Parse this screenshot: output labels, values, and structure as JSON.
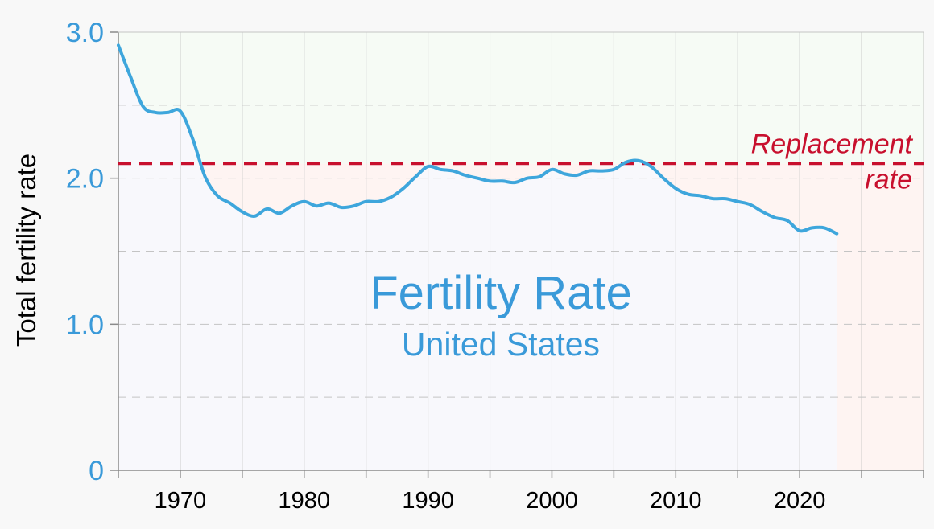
{
  "chart_data": {
    "type": "line",
    "title": "Fertility Rate",
    "subtitle": "United States",
    "xlabel": "",
    "ylabel": "Total fertility rate",
    "xlim": [
      1965,
      2030
    ],
    "ylim": [
      0,
      3.0
    ],
    "x_ticks": [
      1970,
      1980,
      1990,
      2000,
      2010,
      2020
    ],
    "x_tick_labels": [
      "1970",
      "1980",
      "1990",
      "2000",
      "2010",
      "2020"
    ],
    "y_ticks": [
      0,
      1.0,
      2.0,
      3.0
    ],
    "y_tick_labels": [
      "0",
      "1.0",
      "2.0",
      "3.0"
    ],
    "minor_y_gridlines": [
      0.5,
      1.5,
      2.5
    ],
    "grid": true,
    "reference_line": {
      "value": 2.1,
      "label_line1": "Replacement",
      "label_line2": "rate",
      "color": "#c8102e"
    },
    "series": [
      {
        "name": "United States",
        "color": "#3ea6dc",
        "x": [
          1965,
          1966,
          1967,
          1968,
          1969,
          1970,
          1971,
          1972,
          1973,
          1974,
          1975,
          1976,
          1977,
          1978,
          1979,
          1980,
          1981,
          1982,
          1983,
          1984,
          1985,
          1986,
          1987,
          1988,
          1989,
          1990,
          1991,
          1992,
          1993,
          1994,
          1995,
          1996,
          1997,
          1998,
          1999,
          2000,
          2001,
          2002,
          2003,
          2004,
          2005,
          2006,
          2007,
          2008,
          2009,
          2010,
          2011,
          2012,
          2013,
          2014,
          2015,
          2016,
          2017,
          2018,
          2019,
          2020,
          2021,
          2022,
          2023
        ],
        "values": [
          2.91,
          2.69,
          2.49,
          2.45,
          2.45,
          2.46,
          2.27,
          2.01,
          1.88,
          1.83,
          1.77,
          1.74,
          1.79,
          1.76,
          1.81,
          1.84,
          1.81,
          1.83,
          1.8,
          1.81,
          1.84,
          1.84,
          1.87,
          1.93,
          2.01,
          2.08,
          2.06,
          2.05,
          2.02,
          2.0,
          1.98,
          1.98,
          1.97,
          2.0,
          2.01,
          2.06,
          2.03,
          2.02,
          2.05,
          2.05,
          2.06,
          2.11,
          2.12,
          2.08,
          2.0,
          1.93,
          1.89,
          1.88,
          1.86,
          1.86,
          1.84,
          1.82,
          1.77,
          1.73,
          1.71,
          1.64,
          1.66,
          1.66,
          1.62
        ]
      }
    ],
    "colors": {
      "above_fill": "#f6fbf5",
      "below_fill": "#f8f8fc",
      "gap_fill": "#fef4f2",
      "grid": "#c4c4c4",
      "axis": "#8a8a8a"
    }
  }
}
